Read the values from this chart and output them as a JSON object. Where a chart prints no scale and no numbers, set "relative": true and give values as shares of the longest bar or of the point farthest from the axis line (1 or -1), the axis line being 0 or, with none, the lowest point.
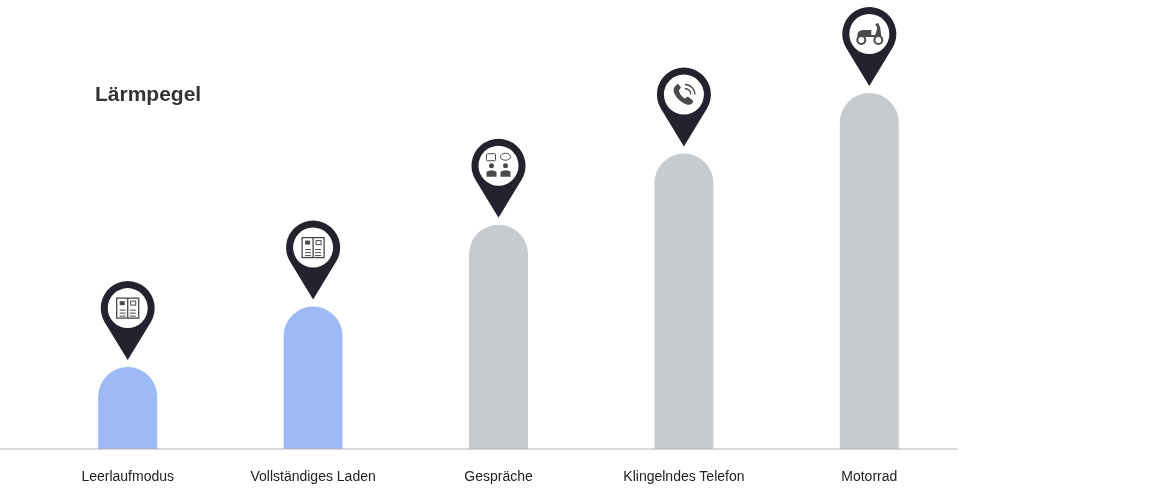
{
  "chart_data": {
    "type": "bar",
    "title": "Lärmpegel",
    "categories": [
      "Leerlaufmodus",
      "Vollständiges Laden",
      "Gespräche",
      "Klingelndes Telefon",
      "Motorrad"
    ],
    "values": [
      0.23,
      0.4,
      0.63,
      0.83,
      1
    ],
    "colors": [
      "#9db9f6",
      "#9db9f6",
      "#c7cbcf",
      "#c7cbcf",
      "#c7cbcf"
    ],
    "relative": true
  }
}
